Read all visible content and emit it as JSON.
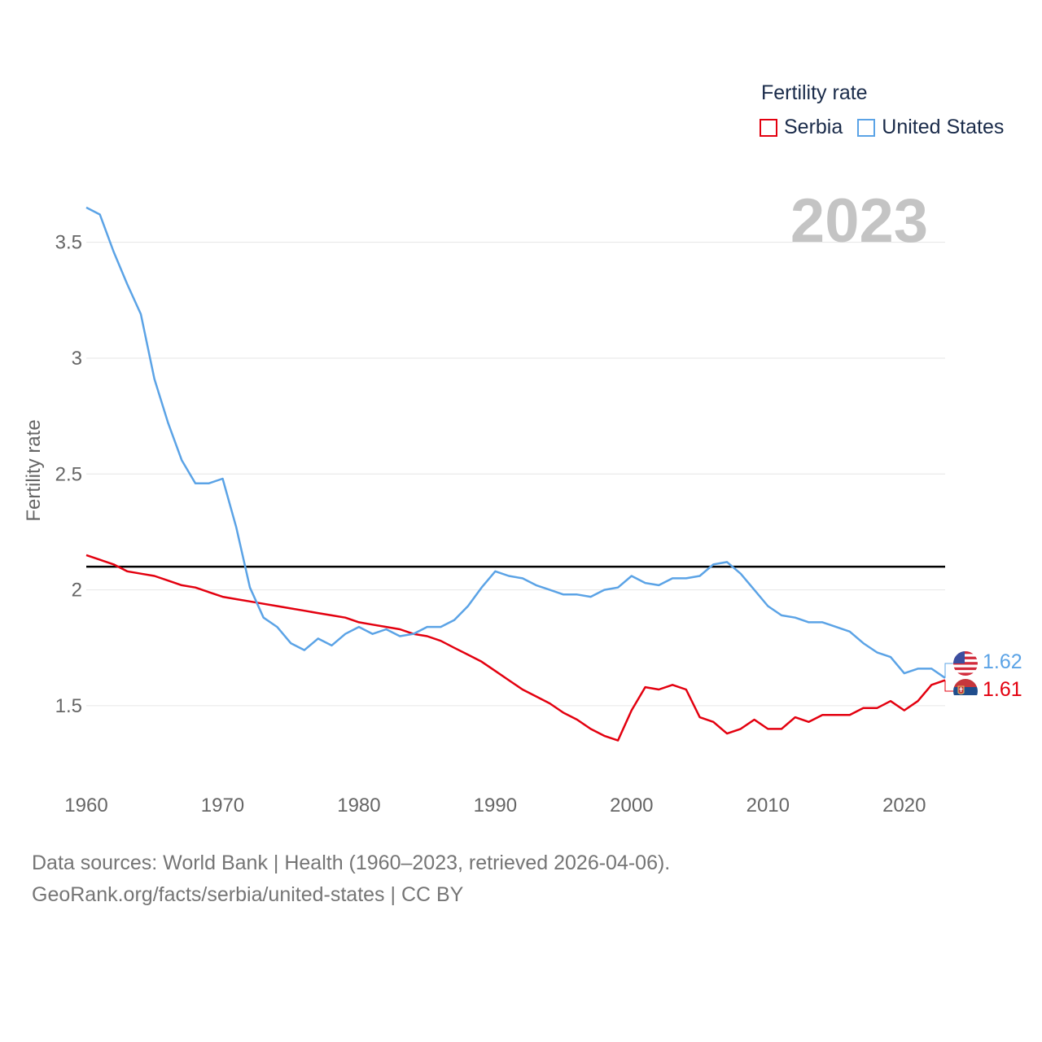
{
  "legend": {
    "title": "Fertility rate"
  },
  "year_overlay": "2023",
  "reference_line": {
    "value": 2.1,
    "color": "#000000"
  },
  "end_labels": {
    "united_states": "1.62",
    "serbia": "1.61"
  },
  "flags": {
    "united_states": "us-flag-icon",
    "serbia": "serbia-flag-icon"
  },
  "footer": {
    "line1": "Data sources: World Bank | Health (1960–2023, retrieved 2026-04-06).",
    "line2": "GeoRank.org/facts/serbia/united-states | CC BY"
  },
  "chart_data": {
    "type": "line",
    "title": "",
    "xlabel": "",
    "ylabel": "Fertility rate",
    "xlim": [
      1960,
      2023
    ],
    "ylim": [
      1.18,
      3.72
    ],
    "xticks": [
      1960,
      1970,
      1980,
      1990,
      2000,
      2010,
      2020
    ],
    "xtick_labels": [
      "1960",
      "1970",
      "1980",
      "1990",
      "2000",
      "2010",
      "2020"
    ],
    "yticks": [
      1.5,
      2,
      2.5,
      3,
      3.5
    ],
    "ytick_labels": [
      "1.5",
      "2",
      "2.5",
      "3",
      "3.5"
    ],
    "grid": true,
    "legend_position": "top-right",
    "x": [
      1960,
      1961,
      1962,
      1963,
      1964,
      1965,
      1966,
      1967,
      1968,
      1969,
      1970,
      1971,
      1972,
      1973,
      1974,
      1975,
      1976,
      1977,
      1978,
      1979,
      1980,
      1981,
      1982,
      1983,
      1984,
      1985,
      1986,
      1987,
      1988,
      1989,
      1990,
      1991,
      1992,
      1993,
      1994,
      1995,
      1996,
      1997,
      1998,
      1999,
      2000,
      2001,
      2002,
      2003,
      2004,
      2005,
      2006,
      2007,
      2008,
      2009,
      2010,
      2011,
      2012,
      2013,
      2014,
      2015,
      2016,
      2017,
      2018,
      2019,
      2020,
      2021,
      2022,
      2023
    ],
    "series": [
      {
        "name": "Serbia",
        "color": "#e3000f",
        "values": [
          2.15,
          2.13,
          2.11,
          2.08,
          2.07,
          2.06,
          2.04,
          2.02,
          2.01,
          1.99,
          1.97,
          1.96,
          1.95,
          1.94,
          1.93,
          1.92,
          1.91,
          1.9,
          1.89,
          1.88,
          1.86,
          1.85,
          1.84,
          1.83,
          1.81,
          1.8,
          1.78,
          1.75,
          1.72,
          1.69,
          1.65,
          1.61,
          1.57,
          1.54,
          1.51,
          1.47,
          1.44,
          1.4,
          1.37,
          1.35,
          1.48,
          1.58,
          1.57,
          1.59,
          1.57,
          1.45,
          1.43,
          1.38,
          1.4,
          1.44,
          1.4,
          1.4,
          1.45,
          1.43,
          1.46,
          1.46,
          1.46,
          1.49,
          1.49,
          1.52,
          1.48,
          1.52,
          1.59,
          1.61
        ]
      },
      {
        "name": "United States",
        "color": "#5ba3e6",
        "values": [
          3.65,
          3.62,
          3.46,
          3.32,
          3.19,
          2.91,
          2.72,
          2.56,
          2.46,
          2.46,
          2.48,
          2.27,
          2.01,
          1.88,
          1.84,
          1.77,
          1.74,
          1.79,
          1.76,
          1.81,
          1.84,
          1.81,
          1.83,
          1.8,
          1.81,
          1.84,
          1.84,
          1.87,
          1.93,
          2.01,
          2.08,
          2.06,
          2.05,
          2.02,
          2.0,
          1.98,
          1.98,
          1.97,
          2.0,
          2.01,
          2.06,
          2.03,
          2.02,
          2.05,
          2.05,
          2.06,
          2.11,
          2.12,
          2.07,
          2.0,
          1.93,
          1.89,
          1.88,
          1.86,
          1.86,
          1.84,
          1.82,
          1.77,
          1.73,
          1.71,
          1.64,
          1.66,
          1.66,
          1.62
        ]
      }
    ]
  }
}
